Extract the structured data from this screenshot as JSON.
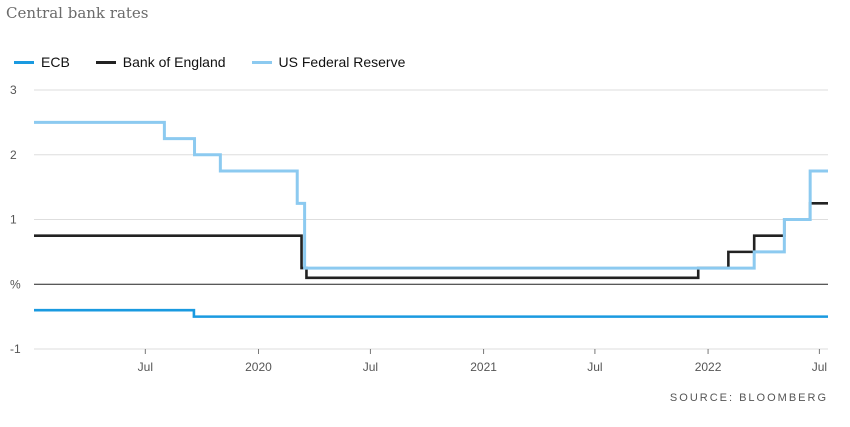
{
  "chart_data": {
    "type": "line",
    "title": "Central bank rates",
    "ylabel": "%",
    "xlabel": "",
    "x_ticks": [
      {
        "date": "2019-07-01",
        "label": "Jul"
      },
      {
        "date": "2020-01-01",
        "label": "2020"
      },
      {
        "date": "2020-07-01",
        "label": "Jul"
      },
      {
        "date": "2021-01-01",
        "label": "2021"
      },
      {
        "date": "2021-07-01",
        "label": "Jul"
      },
      {
        "date": "2022-01-01",
        "label": "2022"
      },
      {
        "date": "2022-07-01",
        "label": "Jul"
      }
    ],
    "xlim": [
      "2019-01-01",
      "2022-07-15"
    ],
    "y_ticks": [
      {
        "value": 3,
        "label": "3"
      },
      {
        "value": 2,
        "label": "2"
      },
      {
        "value": 1,
        "label": "1"
      },
      {
        "value": 0,
        "label": "%"
      },
      {
        "value": -1,
        "label": "-1"
      }
    ],
    "ylim": [
      -1,
      3
    ],
    "grid": true,
    "legend_position": "top-left",
    "series": [
      {
        "name": "ECB",
        "color": "#1a9ae0",
        "step": true,
        "points": [
          [
            "2019-01-01",
            -0.4
          ],
          [
            "2019-09-18",
            -0.5
          ],
          [
            "2022-07-15",
            -0.5
          ]
        ]
      },
      {
        "name": "Bank of England",
        "color": "#222222",
        "step": true,
        "points": [
          [
            "2019-01-01",
            0.75
          ],
          [
            "2020-03-11",
            0.25
          ],
          [
            "2020-03-19",
            0.1
          ],
          [
            "2021-12-16",
            0.25
          ],
          [
            "2022-02-03",
            0.5
          ],
          [
            "2022-03-17",
            0.75
          ],
          [
            "2022-05-05",
            1.0
          ],
          [
            "2022-06-16",
            1.25
          ],
          [
            "2022-07-15",
            1.25
          ]
        ]
      },
      {
        "name": "US Federal Reserve",
        "color": "#8ccaf0",
        "step": true,
        "points": [
          [
            "2019-01-01",
            2.5
          ],
          [
            "2019-08-01",
            2.25
          ],
          [
            "2019-09-19",
            2.0
          ],
          [
            "2019-10-31",
            1.75
          ],
          [
            "2020-03-04",
            1.25
          ],
          [
            "2020-03-16",
            0.25
          ],
          [
            "2022-03-17",
            0.5
          ],
          [
            "2022-05-05",
            1.0
          ],
          [
            "2022-06-16",
            1.75
          ],
          [
            "2022-07-15",
            1.75
          ]
        ]
      }
    ]
  },
  "source": "SOURCE: BLOOMBERG"
}
